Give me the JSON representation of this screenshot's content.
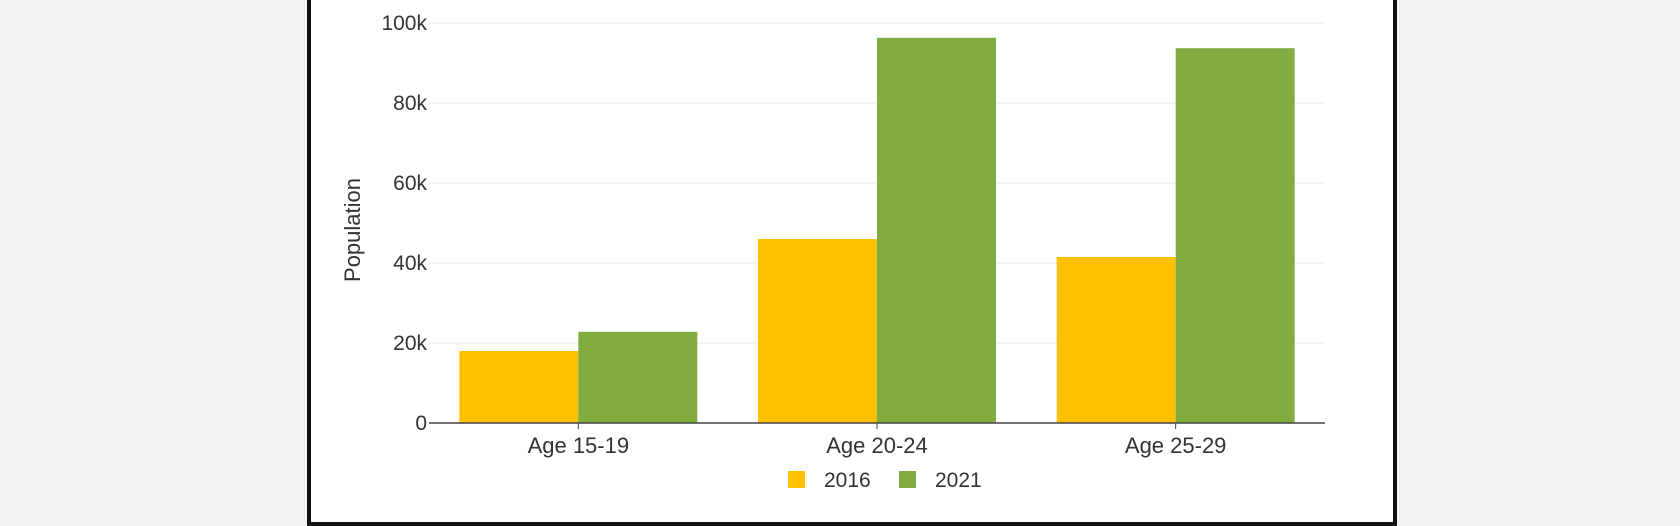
{
  "chart_data": {
    "type": "bar",
    "title": "",
    "xlabel": "",
    "ylabel": "Population",
    "categories": [
      "Age 15-19",
      "Age 20-24",
      "Age 25-29"
    ],
    "series": [
      {
        "name": "2016",
        "color": "#FFC000",
        "values": [
          18000,
          46000,
          41500
        ]
      },
      {
        "name": "2021",
        "color": "#80AC40",
        "values": [
          22800,
          96300,
          93700
        ]
      }
    ],
    "ylim": [
      0,
      100000
    ],
    "y_ticks": [
      {
        "value": 0,
        "label": "0"
      },
      {
        "value": 20000,
        "label": "20k"
      },
      {
        "value": 40000,
        "label": "40k"
      },
      {
        "value": 60000,
        "label": "60k"
      },
      {
        "value": 80000,
        "label": "80k"
      },
      {
        "value": 100000,
        "label": "100k"
      }
    ],
    "grid": true,
    "legend_position": "bottom-center"
  }
}
